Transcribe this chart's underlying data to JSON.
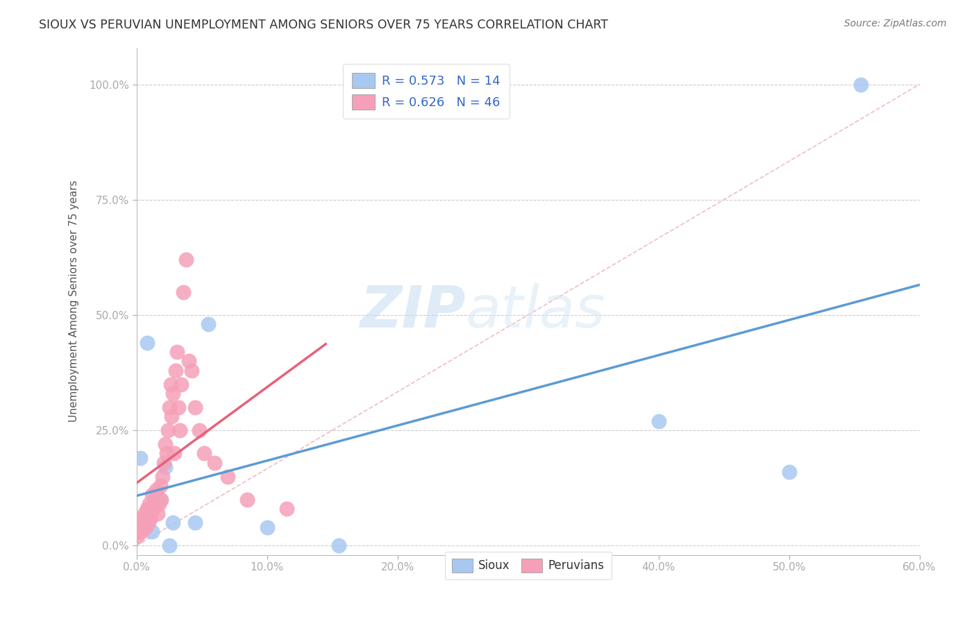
{
  "title": "SIOUX VS PERUVIAN UNEMPLOYMENT AMONG SENIORS OVER 75 YEARS CORRELATION CHART",
  "source": "Source: ZipAtlas.com",
  "ylabel": "Unemployment Among Seniors over 75 years",
  "xlim": [
    0.0,
    0.6
  ],
  "ylim": [
    -0.02,
    1.08
  ],
  "xtick_values": [
    0.0,
    0.1,
    0.2,
    0.3,
    0.4,
    0.5,
    0.6
  ],
  "xtick_labels": [
    "0.0%",
    "10.0%",
    "20.0%",
    "30.0%",
    "40.0%",
    "50.0%",
    "60.0%"
  ],
  "ytick_values": [
    0.0,
    0.25,
    0.5,
    0.75,
    1.0
  ],
  "ytick_labels": [
    "0.0%",
    "25.0%",
    "50.0%",
    "75.0%",
    "100.0%"
  ],
  "sioux_R": 0.573,
  "sioux_N": 14,
  "peruvian_R": 0.626,
  "peruvian_N": 46,
  "sioux_color": "#A8C8F0",
  "peruvian_color": "#F5A0B8",
  "sioux_line_color": "#5B9BD5",
  "peruvian_line_color": "#E8607A",
  "diag_color": "#E8A0B0",
  "watermark_color": "#D8E8F5",
  "legend_color": "#3366CC",
  "sioux_x": [
    0.003,
    0.008,
    0.012,
    0.018,
    0.022,
    0.025,
    0.028,
    0.045,
    0.055,
    0.1,
    0.155,
    0.4,
    0.5,
    0.555
  ],
  "sioux_y": [
    0.19,
    0.44,
    0.03,
    0.1,
    0.17,
    0.0,
    0.05,
    0.05,
    0.48,
    0.04,
    0.0,
    0.27,
    0.16,
    1.0
  ],
  "peruvian_x": [
    0.0,
    0.001,
    0.002,
    0.003,
    0.004,
    0.005,
    0.006,
    0.007,
    0.008,
    0.009,
    0.01,
    0.011,
    0.012,
    0.013,
    0.014,
    0.015,
    0.016,
    0.017,
    0.018,
    0.019,
    0.02,
    0.021,
    0.022,
    0.023,
    0.024,
    0.025,
    0.026,
    0.027,
    0.028,
    0.029,
    0.03,
    0.031,
    0.032,
    0.033,
    0.034,
    0.036,
    0.038,
    0.04,
    0.042,
    0.045,
    0.048,
    0.052,
    0.06,
    0.07,
    0.085,
    0.115
  ],
  "peruvian_y": [
    0.02,
    0.03,
    0.04,
    0.05,
    0.03,
    0.06,
    0.07,
    0.04,
    0.08,
    0.05,
    0.09,
    0.06,
    0.11,
    0.08,
    0.1,
    0.12,
    0.07,
    0.09,
    0.13,
    0.1,
    0.15,
    0.18,
    0.22,
    0.2,
    0.25,
    0.3,
    0.35,
    0.28,
    0.33,
    0.2,
    0.38,
    0.42,
    0.3,
    0.25,
    0.35,
    0.55,
    0.62,
    0.4,
    0.38,
    0.3,
    0.25,
    0.2,
    0.18,
    0.15,
    0.1,
    0.08
  ]
}
